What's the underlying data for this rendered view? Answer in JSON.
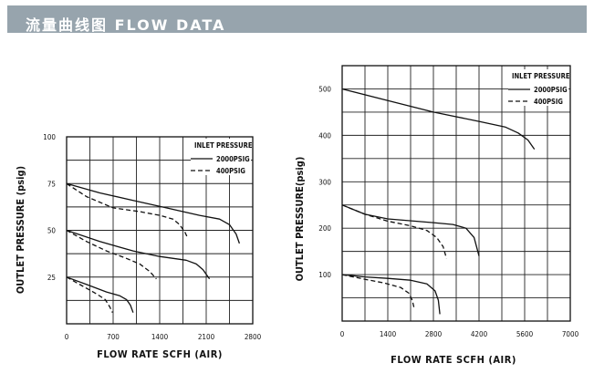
{
  "header": {
    "title": "流量曲线图 FLOW DATA",
    "bar_color": "#97a4ad",
    "text_color": "#ffffff"
  },
  "chart_data": [
    {
      "type": "line",
      "xlabel": "FLOW RATE SCFH (AIR)",
      "ylabel": "OUTLET PRESSURE (psig)",
      "xlim": [
        0,
        2800
      ],
      "ylim": [
        0,
        100
      ],
      "x_ticks": [
        "0",
        "700",
        "1400",
        "2100",
        "2800"
      ],
      "y_ticks": [
        "25",
        "50",
        "75",
        "100"
      ],
      "grid": true,
      "legend_placement": "top-right",
      "legend_title": "INLET PRESSURE",
      "series": [
        {
          "name": "2000PSIG",
          "style": "solid",
          "legend": true,
          "x": [
            0,
            500,
            1000,
            1500,
            2000,
            2300,
            2450,
            2550,
            2600
          ],
          "y": [
            75,
            70,
            66,
            62,
            58,
            56,
            53,
            48,
            43
          ]
        },
        {
          "name": "400PSIG",
          "style": "dashed",
          "legend": true,
          "x": [
            0,
            300,
            700,
            1100,
            1400,
            1600,
            1700,
            1780,
            1820
          ],
          "y": [
            75,
            68,
            62,
            60,
            58,
            56,
            53,
            49,
            46
          ]
        },
        {
          "name": "2000PSIG",
          "style": "solid",
          "legend": false,
          "x": [
            0,
            500,
            1000,
            1400,
            1800,
            1950,
            2050,
            2150
          ],
          "y": [
            50,
            44,
            39,
            36,
            34,
            32,
            29,
            24
          ]
        },
        {
          "name": "400PSIG",
          "style": "dashed",
          "legend": false,
          "x": [
            0,
            300,
            600,
            900,
            1100,
            1250,
            1350
          ],
          "y": [
            50,
            44,
            39,
            35,
            32,
            28,
            24
          ]
        },
        {
          "name": "2000PSIG",
          "style": "solid",
          "legend": false,
          "x": [
            0,
            300,
            600,
            800,
            900,
            960,
            1000
          ],
          "y": [
            25,
            21,
            17,
            15,
            13,
            10,
            6
          ]
        },
        {
          "name": "400PSIG",
          "style": "dashed",
          "legend": false,
          "x": [
            0,
            250,
            450,
            580,
            650,
            690
          ],
          "y": [
            25,
            20,
            16,
            13,
            9,
            6
          ]
        }
      ]
    },
    {
      "type": "line",
      "xlabel": "FLOW RATE SCFH (AIR)",
      "ylabel": "OUTLET PRESSURE(psig)",
      "xlim": [
        0,
        7000
      ],
      "ylim": [
        0,
        550
      ],
      "x_ticks": [
        "0",
        "1400",
        "2800",
        "4200",
        "5600",
        "7000"
      ],
      "y_ticks": [
        "100",
        "200",
        "300",
        "400",
        "500"
      ],
      "grid": true,
      "legend_placement": "top-right",
      "legend_title": "INLET PRESSURE",
      "series": [
        {
          "name": "2000PSIG",
          "style": "solid",
          "legend": true,
          "x": [
            0,
            1400,
            2800,
            4200,
            5000,
            5400,
            5700,
            5900
          ],
          "y": [
            500,
            475,
            450,
            430,
            418,
            405,
            390,
            370
          ]
        },
        {
          "name": "400PSIG",
          "style": "dashed",
          "legend": true,
          "x": [],
          "y": []
        },
        {
          "name": "2000PSIG",
          "style": "solid",
          "legend": false,
          "x": [
            0,
            700,
            1400,
            2800,
            3400,
            3800,
            4050,
            4200
          ],
          "y": [
            250,
            230,
            220,
            212,
            208,
            200,
            180,
            140
          ]
        },
        {
          "name": "400PSIG",
          "style": "dashed",
          "legend": false,
          "x": [
            0,
            700,
            1400,
            2100,
            2600,
            2900,
            3100,
            3200
          ],
          "y": [
            250,
            230,
            215,
            205,
            195,
            180,
            160,
            135
          ]
        },
        {
          "name": "2000PSIG",
          "style": "solid",
          "legend": false,
          "x": [
            0,
            700,
            1400,
            2100,
            2600,
            2850,
            2950,
            3000
          ],
          "y": [
            100,
            95,
            92,
            88,
            80,
            65,
            45,
            15
          ]
        },
        {
          "name": "400PSIG",
          "style": "dashed",
          "legend": false,
          "x": [
            0,
            700,
            1300,
            1800,
            2050,
            2150,
            2200
          ],
          "y": [
            100,
            90,
            82,
            72,
            60,
            45,
            30
          ]
        }
      ]
    }
  ]
}
